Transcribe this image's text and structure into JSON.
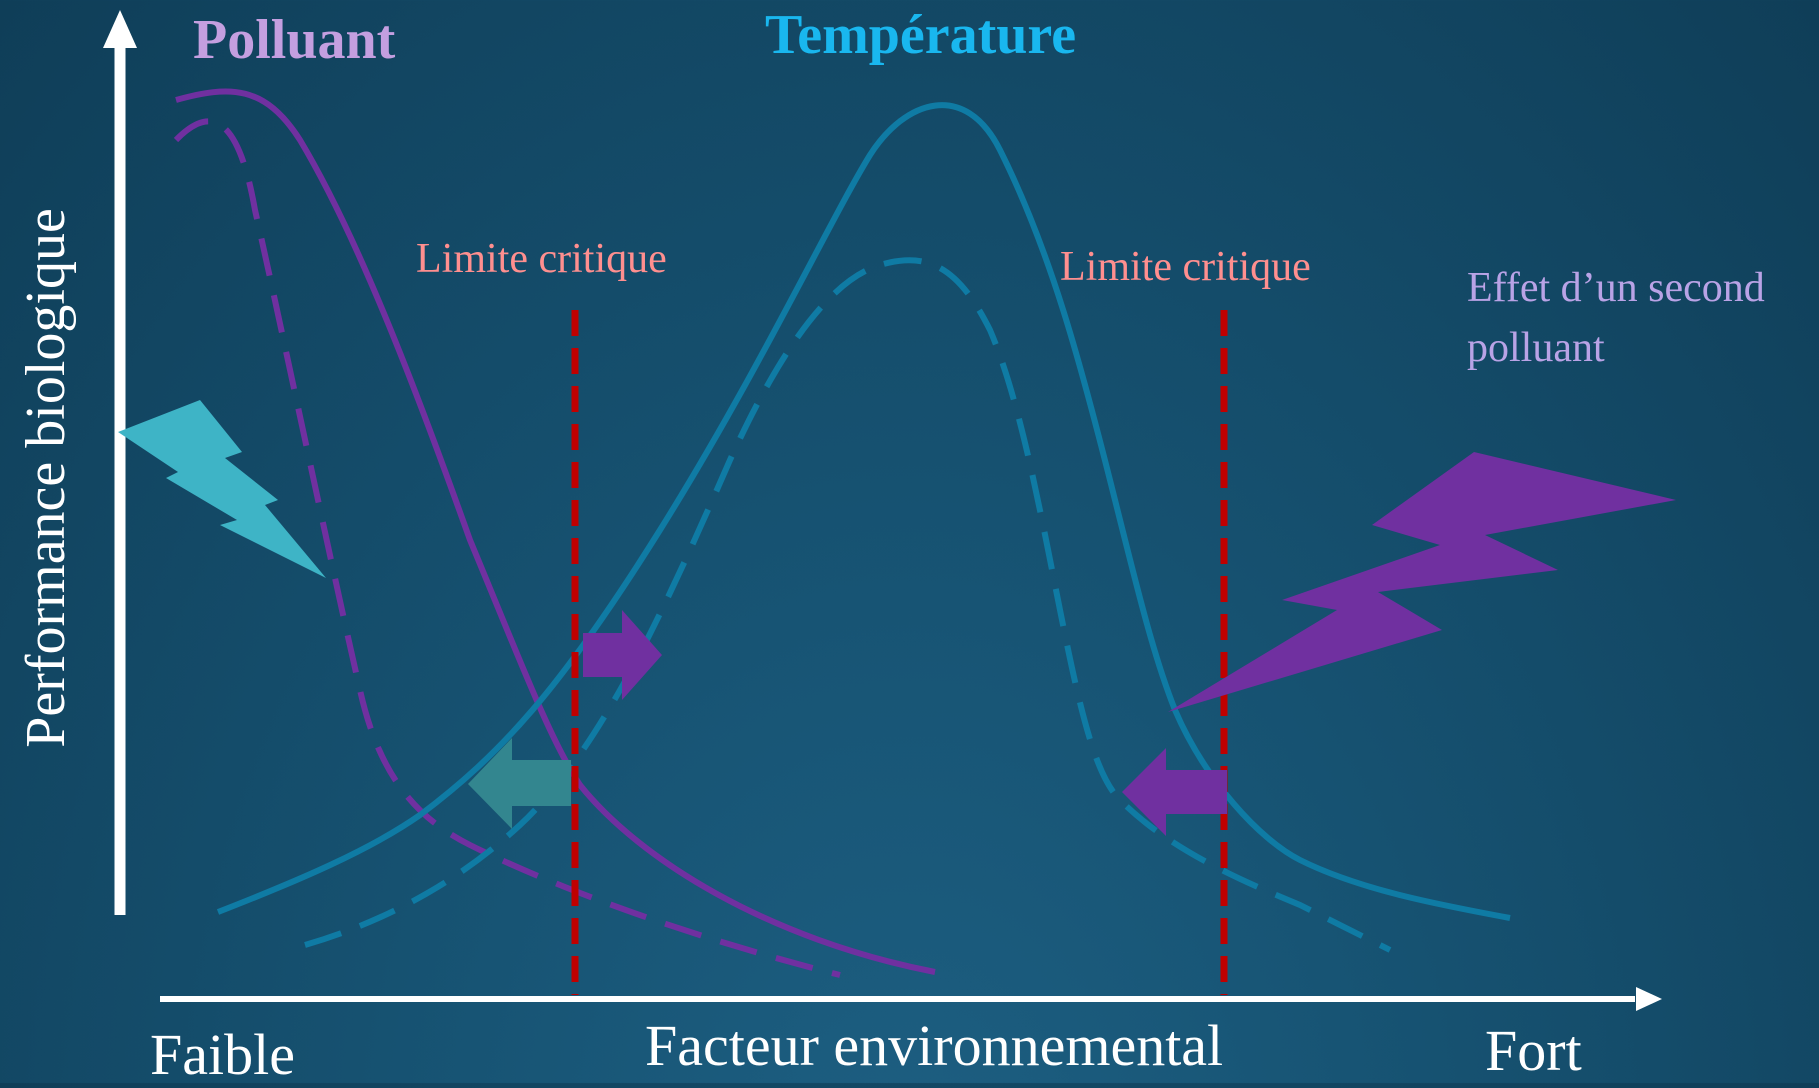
{
  "titles": {
    "pollutant": "Polluant",
    "temperature": "Température"
  },
  "labels": {
    "critical_limit_left": "Limite critique",
    "critical_limit_right": "Limite critique",
    "second_pollutant_line1": "Effet d’un second",
    "second_pollutant_line2": "polluant"
  },
  "axes": {
    "y_label": "Performance biologique",
    "x_label": "Facteur environnemental",
    "x_low": "Faible",
    "x_high": "Fort"
  },
  "colors": {
    "pollutant": "#7030a0",
    "pollutant_title": "#c49fe0",
    "temperature": "#0f7ba4",
    "temperature_title": "#19b7ef",
    "critical": "#c00000",
    "critical_text": "#ff8f8f",
    "second_pollutant_text": "#b9a3e6",
    "axis": "#ffffff",
    "bolt_teal": "#3eb4c6",
    "arrow_teal": "#33868f"
  },
  "icons": {
    "bolt_left": "lightning-bolt-icon",
    "bolt_right": "lightning-bolt-icon",
    "arrow_right": "arrow-right-icon",
    "arrow_left_teal": "arrow-left-icon",
    "arrow_left_purple": "arrow-left-icon"
  }
}
